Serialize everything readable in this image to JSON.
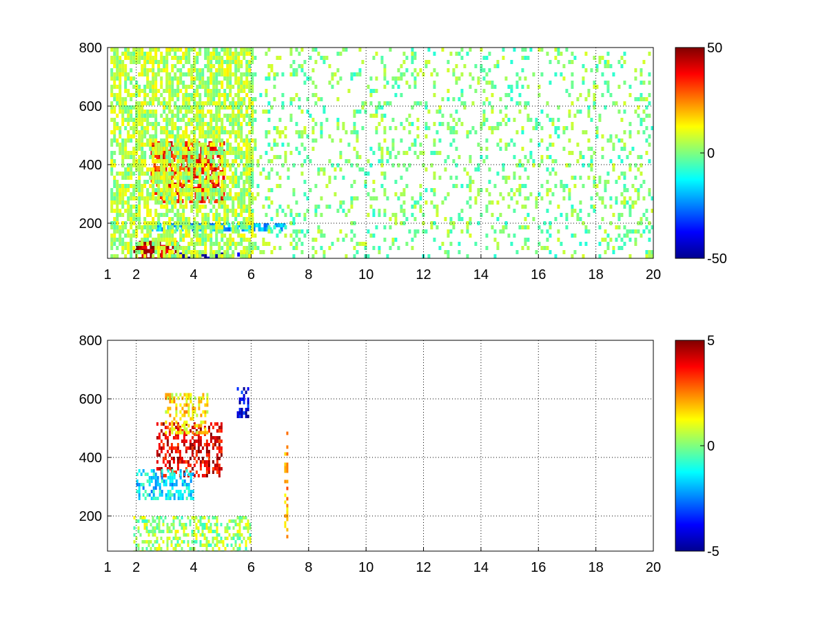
{
  "chart_data": [
    {
      "type": "heatmap",
      "title": "",
      "xlabel": "",
      "ylabel": "",
      "x_ticks": [
        "1",
        "2",
        "4",
        "6",
        "8",
        "10",
        "12",
        "14",
        "16",
        "18",
        "20"
      ],
      "y_ticks": [
        "200",
        "400",
        "600",
        "800"
      ],
      "xlim": [
        1,
        20
      ],
      "ylim": [
        80,
        800
      ],
      "grid": true,
      "colormap": "jet",
      "colorbar": {
        "range": [
          -50,
          50
        ],
        "tick_labels": [
          "50",
          "0",
          "-50"
        ]
      },
      "regions": [
        {
          "description_of_value": "dense positive (orange-red)",
          "x_range": [
            2.5,
            5.0
          ],
          "y_range": [
            280,
            480
          ],
          "value": 35
        },
        {
          "description_of_value": "strong positive (red) near base",
          "x_range": [
            1.9,
            3.5
          ],
          "y_range": [
            80,
            140
          ],
          "value": 45
        },
        {
          "description_of_value": "negative band (blue)",
          "x_range": [
            3.5,
            6.0
          ],
          "y_range": [
            80,
            100
          ],
          "value": -45
        },
        {
          "description_of_value": "negative band (cyan)",
          "x_range": [
            2.5,
            7.2
          ],
          "y_range": [
            175,
            200
          ],
          "value": -20
        },
        {
          "description_of_value": "mixed yellow/cyan",
          "x_range": [
            1.1,
            6.0
          ],
          "y_range": [
            80,
            800
          ],
          "value": 5
        },
        {
          "description_of_value": "sparse near-zero green/cyan",
          "x_range": [
            6.0,
            20.0
          ],
          "y_range": [
            80,
            800
          ],
          "value": 0
        }
      ]
    },
    {
      "type": "heatmap",
      "title": "",
      "xlabel": "",
      "ylabel": "",
      "x_ticks": [
        "1",
        "2",
        "4",
        "6",
        "8",
        "10",
        "12",
        "14",
        "16",
        "18",
        "20"
      ],
      "y_ticks": [
        "200",
        "400",
        "600",
        "800"
      ],
      "xlim": [
        1,
        20
      ],
      "ylim": [
        80,
        800
      ],
      "grid": true,
      "colormap": "jet",
      "colorbar": {
        "range": [
          -5,
          5
        ],
        "tick_labels": [
          "5",
          "0",
          "-5"
        ]
      },
      "regions": [
        {
          "description_of_value": "strong positive (red) diagonal band",
          "x_range": [
            2.7,
            5.0
          ],
          "y_range": [
            340,
            520
          ],
          "value": 4
        },
        {
          "description_of_value": "positive scatter (yellow)",
          "x_range": [
            3.0,
            4.5
          ],
          "y_range": [
            480,
            620
          ],
          "value": 1.5
        },
        {
          "description_of_value": "negative (cyan) band",
          "x_range": [
            2.0,
            4.0
          ],
          "y_range": [
            260,
            360
          ],
          "value": -1.5
        },
        {
          "description_of_value": "near-zero green base",
          "x_range": [
            1.9,
            6.0
          ],
          "y_range": [
            80,
            200
          ],
          "value": 0.3
        },
        {
          "description_of_value": "vertical streak at x≈7.2",
          "x_range": [
            7.15,
            7.25
          ],
          "y_range": [
            130,
            500
          ],
          "value": 2
        },
        {
          "description_of_value": "negative cluster (blue) near x≈5.7",
          "x_range": [
            5.5,
            5.9
          ],
          "y_range": [
            540,
            640
          ],
          "value": -4
        }
      ]
    }
  ]
}
